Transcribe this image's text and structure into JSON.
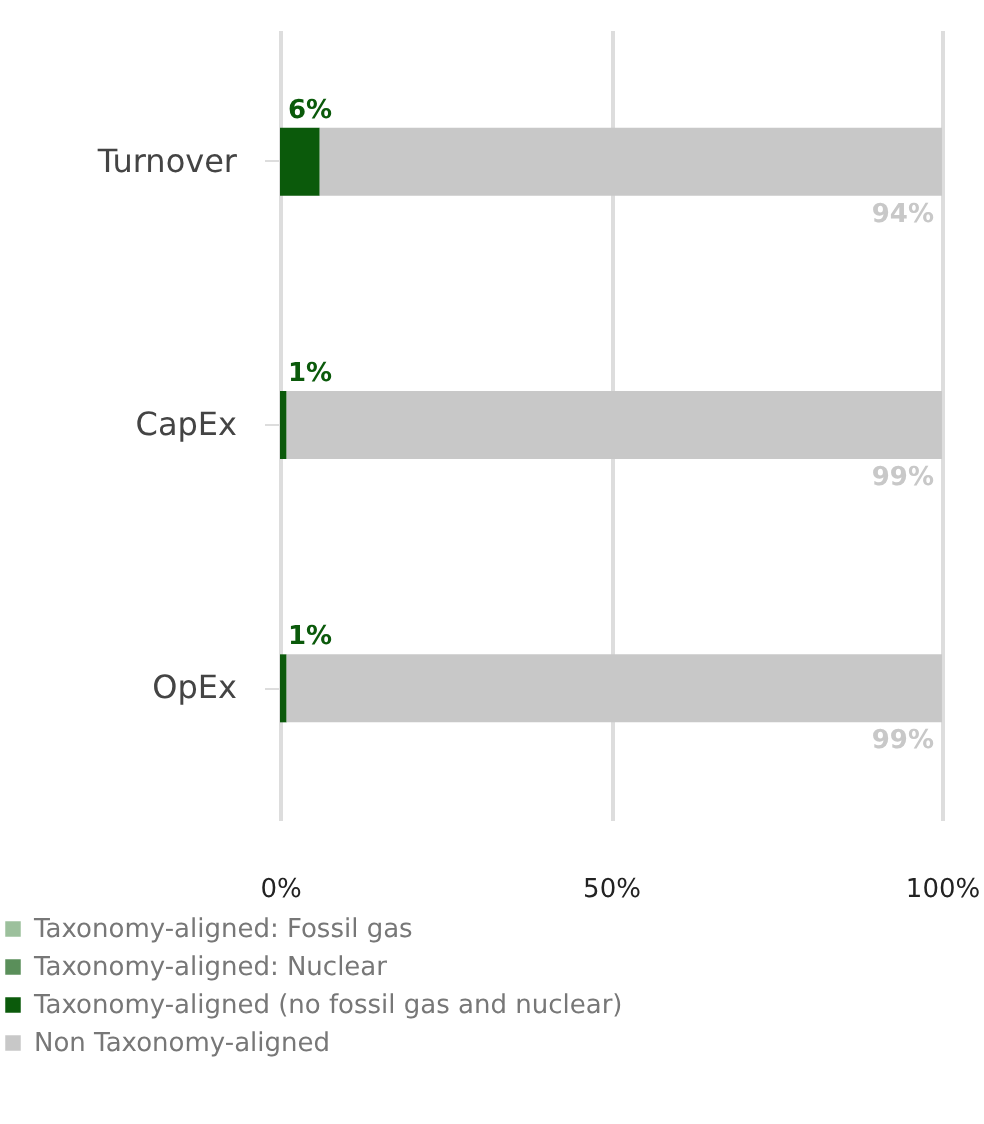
{
  "chart_data": {
    "type": "bar",
    "orientation": "horizontal",
    "stacked": true,
    "categories": [
      "Turnover",
      "CapEx",
      "OpEx"
    ],
    "series": [
      {
        "name": "Taxonomy-aligned: Fossil gas",
        "color": "#9cc09c",
        "values": [
          0,
          0,
          0
        ],
        "value_labels": [
          null,
          null,
          null
        ]
      },
      {
        "name": "Taxonomy-aligned: Nuclear",
        "color": "#5a8f5a",
        "values": [
          0,
          0,
          0
        ],
        "value_labels": [
          null,
          null,
          null
        ]
      },
      {
        "name": "Taxonomy-aligned (no fossil gas and nuclear)",
        "color": "#0b5a0b",
        "values": [
          6,
          1,
          1
        ],
        "value_labels": [
          "6%",
          "1%",
          "1%"
        ]
      },
      {
        "name": "Non Taxonomy-aligned",
        "color": "#c8c8c8",
        "values": [
          94,
          99,
          99
        ],
        "value_labels": [
          "94%",
          "99%",
          "99%"
        ]
      }
    ],
    "xlim": [
      0,
      100
    ],
    "xticks": [
      {
        "value": 0,
        "label": "0%"
      },
      {
        "value": 50,
        "label": "50%"
      },
      {
        "value": 100,
        "label": "100%"
      }
    ],
    "grid": "x",
    "legend": "bottom"
  }
}
